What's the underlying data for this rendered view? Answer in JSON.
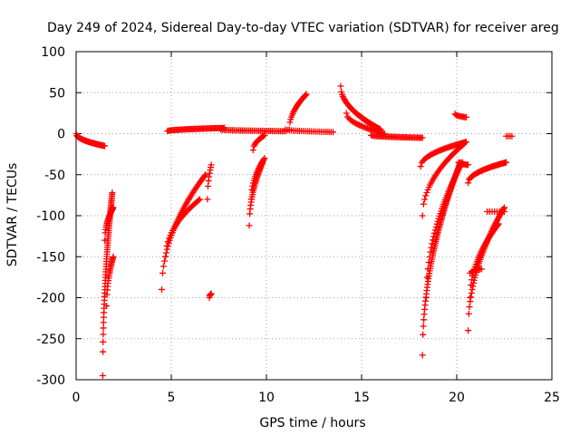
{
  "chart_data": {
    "type": "scatter",
    "title": "Day 249 of 2024, Sidereal Day-to-day VTEC variation (SDTVAR) for receiver areg",
    "xlabel": "GPS time / hours",
    "ylabel": "SDTVAR / TECUs",
    "xlim": [
      0,
      25
    ],
    "ylim": [
      -300,
      100
    ],
    "xticks": [
      0,
      5,
      10,
      15,
      20,
      25
    ],
    "xtick_labels": [
      "0",
      "5",
      "10",
      "15",
      "20",
      "25"
    ],
    "yticks": [
      -300,
      -250,
      -200,
      -150,
      -100,
      -50,
      0,
      50,
      100
    ],
    "ytick_labels": [
      "-300",
      "-250",
      "-200",
      "-150",
      "-100",
      "-50",
      "0",
      "50",
      "100"
    ],
    "grid": true,
    "marker": "+",
    "series_color": "#ff0000",
    "tracks": [
      {
        "name": "arc-1",
        "x0": 0.0,
        "x1": 1.5,
        "y0": 0,
        "y1": -15,
        "n": 40
      },
      {
        "name": "arc-2",
        "x0": 1.4,
        "x1": 1.9,
        "y0": -295,
        "y1": -72,
        "n": 60
      },
      {
        "name": "arc-3",
        "x0": 1.6,
        "x1": 1.95,
        "y0": -210,
        "y1": -150,
        "n": 20
      },
      {
        "name": "arc-4",
        "x0": 1.5,
        "x1": 1.95,
        "y0": -130,
        "y1": -90,
        "n": 20
      },
      {
        "name": "arc-5",
        "x0": 4.5,
        "x1": 6.8,
        "y0": -190,
        "y1": -50,
        "n": 50
      },
      {
        "name": "arc-6",
        "x0": 4.7,
        "x1": 6.5,
        "y0": -150,
        "y1": -80,
        "n": 30
      },
      {
        "name": "arc-7",
        "x0": 4.8,
        "x1": 7.8,
        "y0": 3,
        "y1": 7,
        "n": 50
      },
      {
        "name": "arc-8",
        "x0": 7.0,
        "x1": 7.1,
        "y0": -200,
        "y1": -195,
        "n": 6
      },
      {
        "name": "arc-9",
        "x0": 6.9,
        "x1": 7.1,
        "y0": -80,
        "y1": -38,
        "n": 8
      },
      {
        "name": "arc-10",
        "x0": 7.6,
        "x1": 11.0,
        "y0": 5,
        "y1": 3,
        "n": 40
      },
      {
        "name": "arc-11",
        "x0": 9.1,
        "x1": 9.8,
        "y0": -112,
        "y1": -35,
        "n": 30
      },
      {
        "name": "arc-12",
        "x0": 9.2,
        "x1": 9.9,
        "y0": -80,
        "y1": -30,
        "n": 20
      },
      {
        "name": "arc-13",
        "x0": 9.3,
        "x1": 9.9,
        "y0": -20,
        "y1": -2,
        "n": 15
      },
      {
        "name": "arc-14",
        "x0": 11.2,
        "x1": 12.1,
        "y0": 5,
        "y1": 48,
        "n": 25
      },
      {
        "name": "arc-15",
        "x0": 11.0,
        "x1": 13.5,
        "y0": 5,
        "y1": 2,
        "n": 25
      },
      {
        "name": "arc-16",
        "x0": 13.9,
        "x1": 16.0,
        "y0": 58,
        "y1": 5,
        "n": 55
      },
      {
        "name": "arc-17",
        "x0": 14.2,
        "x1": 16.2,
        "y0": 25,
        "y1": 0,
        "n": 30
      },
      {
        "name": "arc-18",
        "x0": 15.5,
        "x1": 18.2,
        "y0": -2,
        "y1": -5,
        "n": 40
      },
      {
        "name": "arc-19",
        "x0": 18.2,
        "x1": 20.2,
        "y0": -270,
        "y1": -35,
        "n": 90
      },
      {
        "name": "arc-20",
        "x0": 18.4,
        "x1": 20.3,
        "y0": -200,
        "y1": -35,
        "n": 45
      },
      {
        "name": "arc-21",
        "x0": 18.2,
        "x1": 20.4,
        "y0": -100,
        "y1": -12,
        "n": 40
      },
      {
        "name": "arc-22",
        "x0": 18.1,
        "x1": 20.5,
        "y0": -40,
        "y1": -10,
        "n": 40
      },
      {
        "name": "arc-23",
        "x0": 19.9,
        "x1": 20.5,
        "y0": 24,
        "y1": 20,
        "n": 10
      },
      {
        "name": "arc-24",
        "x0": 20.1,
        "x1": 20.6,
        "y0": -35,
        "y1": -38,
        "n": 10
      },
      {
        "name": "arc-25",
        "x0": 20.6,
        "x1": 22.5,
        "y0": -240,
        "y1": -90,
        "n": 55
      },
      {
        "name": "arc-26",
        "x0": 20.7,
        "x1": 22.2,
        "y0": -200,
        "y1": -110,
        "n": 35
      },
      {
        "name": "arc-27",
        "x0": 20.7,
        "x1": 21.3,
        "y0": -170,
        "y1": -165,
        "n": 8
      },
      {
        "name": "arc-28",
        "x0": 21.6,
        "x1": 22.5,
        "y0": -95,
        "y1": -95,
        "n": 8
      },
      {
        "name": "arc-29",
        "x0": 20.6,
        "x1": 22.6,
        "y0": -60,
        "y1": -35,
        "n": 40
      },
      {
        "name": "arc-30",
        "x0": 22.6,
        "x1": 22.9,
        "y0": -3,
        "y1": -3,
        "n": 4
      }
    ]
  }
}
